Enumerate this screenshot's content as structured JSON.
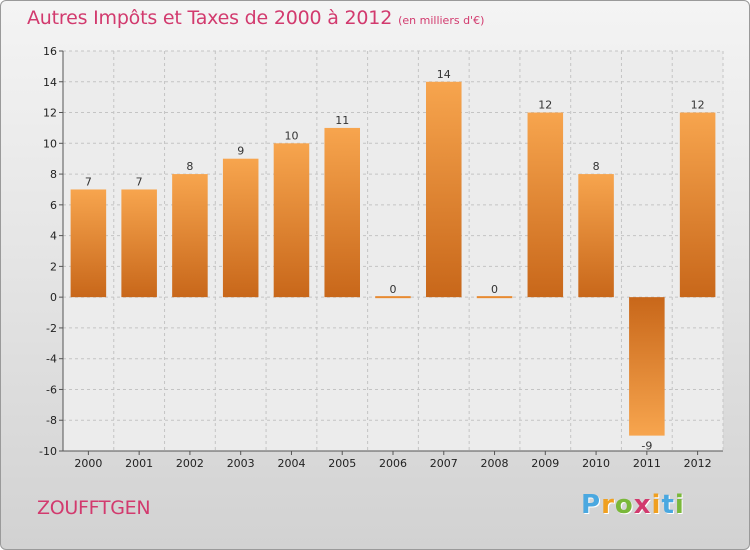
{
  "header": {
    "title": "Autres Impôts et Taxes de 2000 à 2012",
    "unit": "(en milliers d'€)"
  },
  "commune": "ZOUFFTGEN",
  "logo": {
    "letters": [
      "P",
      "r",
      "o",
      "x",
      "i",
      "t",
      "i"
    ],
    "colors": [
      "#4aa8e0",
      "#f0a020",
      "#7ab83a",
      "#d23a6e",
      "#f0a020",
      "#4aa8e0",
      "#7ab83a"
    ]
  },
  "chart_data": {
    "type": "bar",
    "title": "Autres Impôts et Taxes de 2000 à 2012",
    "subtitle": "(en milliers d'€)",
    "categories": [
      "2000",
      "2001",
      "2002",
      "2003",
      "2004",
      "2005",
      "2006",
      "2007",
      "2008",
      "2009",
      "2010",
      "2011",
      "2012"
    ],
    "values": [
      7,
      7,
      8,
      9,
      10,
      11,
      0,
      14,
      0,
      12,
      8,
      -9,
      12
    ],
    "ylim": [
      -10,
      16
    ],
    "yticks": [
      -10,
      -8,
      -6,
      -4,
      -2,
      0,
      2,
      4,
      6,
      8,
      10,
      12,
      14,
      16
    ],
    "grid": true,
    "bar_color_light": "#f7a54e",
    "bar_color_dark": "#c8671a"
  }
}
